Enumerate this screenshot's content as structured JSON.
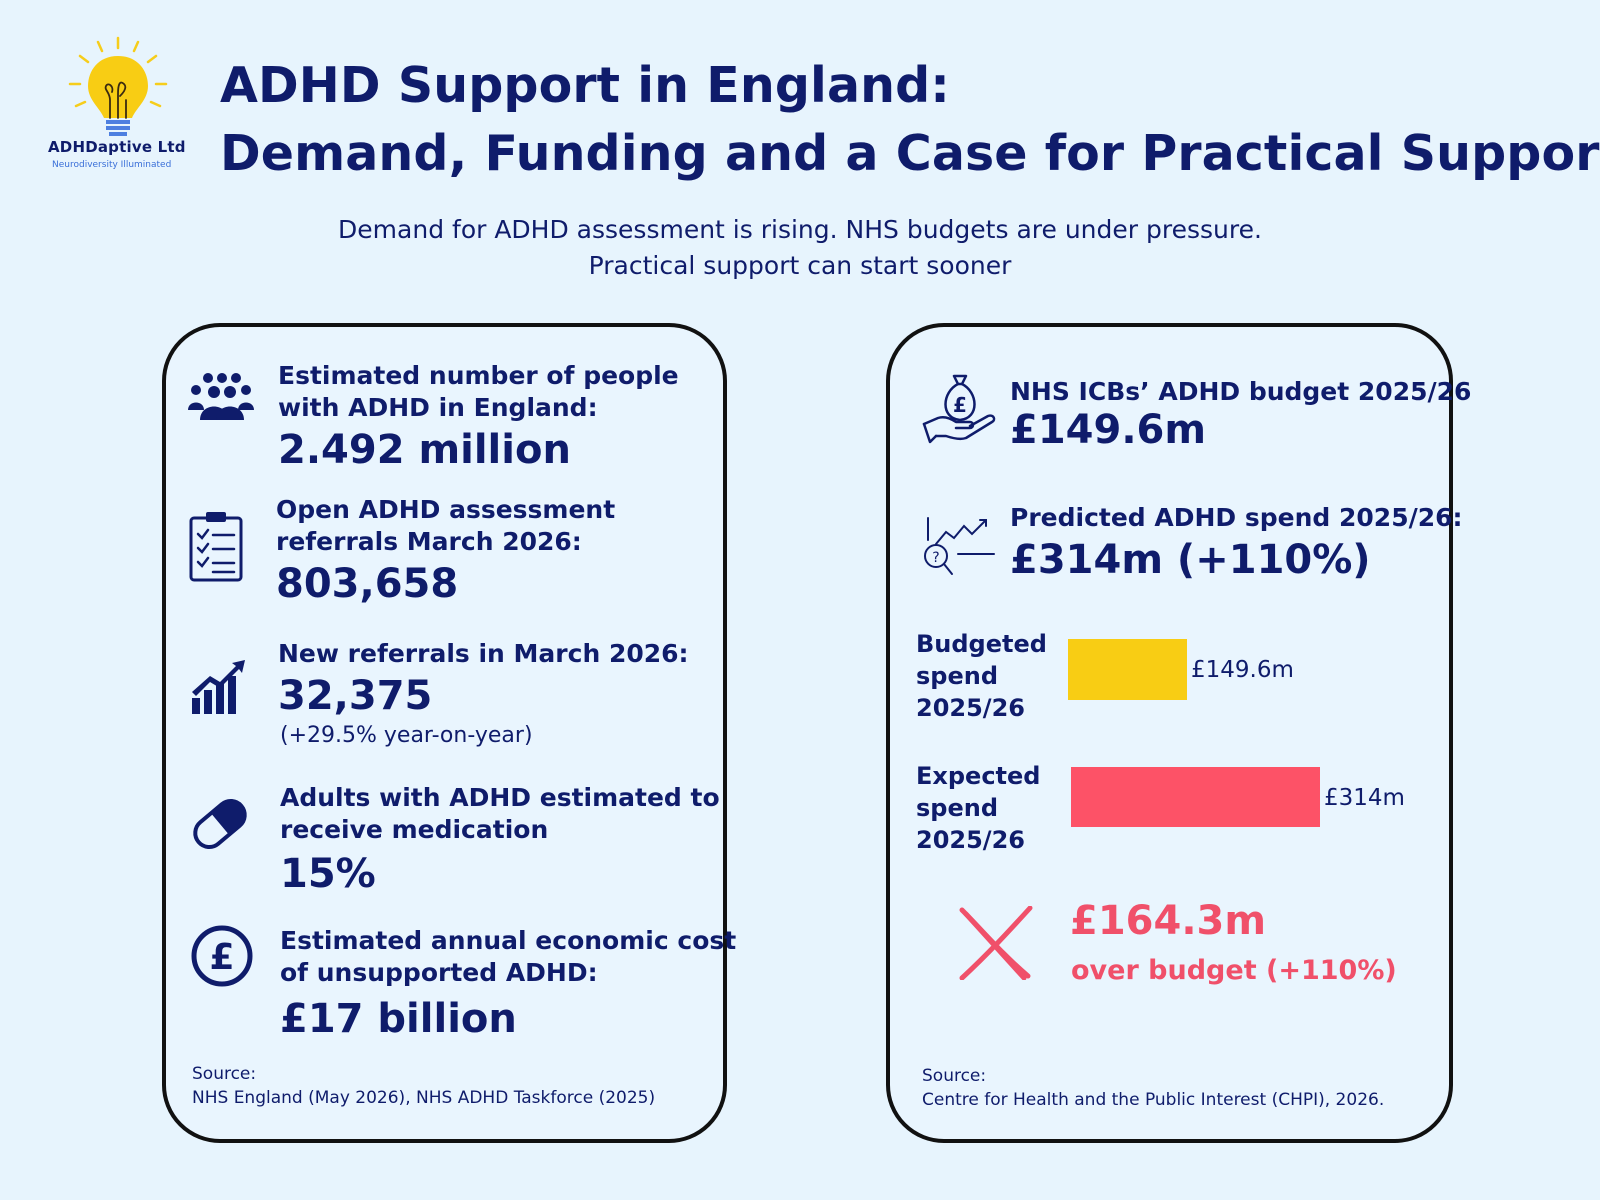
{
  "brand": {
    "name": "ADHDaptive Ltd",
    "tagline": "Neurodiversity Illuminated",
    "logo_icon": "lightbulb-icon"
  },
  "header": {
    "title_line1": "ADHD Support in England:",
    "title_line2": "Demand, Funding and a Case for Practical Support",
    "subtitle_line1": "Demand for ADHD assessment is rising. NHS budgets are under pressure.",
    "subtitle_line2": "Practical support can start sooner"
  },
  "left_card": {
    "stats": [
      {
        "icon": "people-group-icon",
        "label_line1": "Estimated number of people",
        "label_line2": "with ADHD in England:",
        "value": "2.492 million"
      },
      {
        "icon": "clipboard-checklist-icon",
        "label_line1": "Open ADHD assessment",
        "label_line2": "referrals March 2026:",
        "value": "803,658"
      },
      {
        "icon": "growth-chart-icon",
        "label_line1": "New referrals in March 2026:",
        "value": "32,375",
        "note": "(+29.5% year-on-year)"
      },
      {
        "icon": "pill-capsule-icon",
        "label_line1": "Adults with ADHD estimated to",
        "label_line2": "receive medication",
        "value": "15%"
      },
      {
        "icon": "pound-coin-icon",
        "label_line1": "Estimated annual economic cost",
        "label_line2": "of unsupported ADHD:",
        "value": "£17 billion"
      }
    ],
    "source_heading": "Source:",
    "source_text": "NHS England (May 2026), NHS ADHD Taskforce (2025)"
  },
  "right_card": {
    "budget": {
      "icon": "money-bag-hand-icon",
      "label": "NHS ICBs’ ADHD budget 2025/26",
      "value": "£149.6m"
    },
    "predicted": {
      "icon": "trend-magnifier-icon",
      "label": "Predicted ADHD spend 2025/26:",
      "value": "£314m (+110%)"
    },
    "overspend": {
      "icon": "cross-mark-icon",
      "value": "£164.3m",
      "text": "over budget (+110%)"
    },
    "source_heading": "Source:",
    "source_text": "Centre for Health and the Public Interest (CHPI), 2026."
  },
  "colors": {
    "background": "#e7f4fd",
    "navy": "#0f1c6b",
    "budget_bar": "#f8cd14",
    "expected_bar": "#fd5267",
    "over_budget": "#f0506a"
  },
  "chart_data": {
    "type": "bar",
    "orientation": "horizontal",
    "categories": [
      "Budgeted spend 2025/26",
      "Expected spend 2025/26"
    ],
    "values": [
      149.6,
      314
    ],
    "value_labels": [
      "£149.6m",
      "£314m"
    ],
    "category_lines": [
      [
        "Budgeted",
        "spend",
        "2025/26"
      ],
      [
        "Expected",
        "spend",
        "2025/26"
      ]
    ],
    "bar_colors": [
      "#f8cd14",
      "#fd5267"
    ],
    "unit": "£m",
    "grid": false,
    "axes_visible": false
  }
}
